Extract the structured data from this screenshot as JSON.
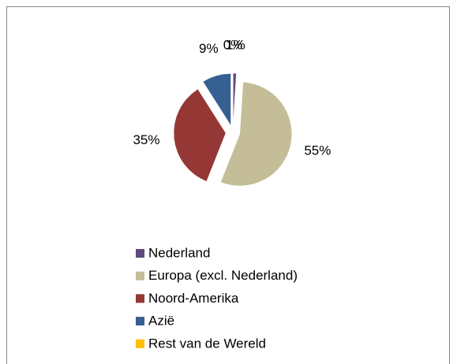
{
  "chart_data": {
    "type": "pie",
    "categories": [
      "Nederland",
      "Europa (excl. Nederland)",
      "Noord-Amerika",
      "Azië",
      "Rest van de Wereld"
    ],
    "values": [
      1,
      55,
      35,
      9,
      0
    ],
    "value_labels": [
      "1%",
      "55%",
      "35%",
      "9%",
      "0%"
    ],
    "colors": [
      "#604a7b",
      "#c4bd97",
      "#953735",
      "#376092",
      "#ffc000"
    ],
    "exploded": true,
    "legend": "bottom"
  }
}
